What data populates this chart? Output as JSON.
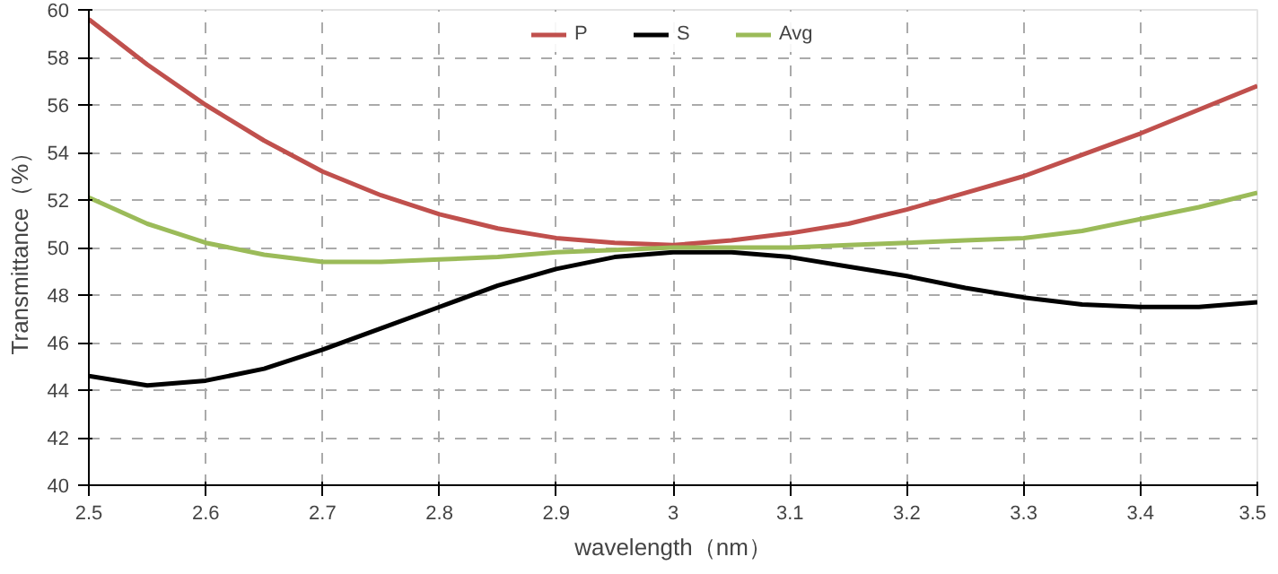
{
  "chart_data": {
    "type": "line",
    "xlabel": "wavelength（nm）",
    "ylabel": "Transmittance（%）",
    "x": [
      2.5,
      2.55,
      2.6,
      2.65,
      2.7,
      2.75,
      2.8,
      2.85,
      2.9,
      2.95,
      3.0,
      3.05,
      3.1,
      3.15,
      3.2,
      3.25,
      3.3,
      3.35,
      3.4,
      3.45,
      3.5
    ],
    "series": [
      {
        "name": "P",
        "color": "#c0504d",
        "values": [
          59.6,
          57.7,
          56.0,
          54.5,
          53.2,
          52.2,
          51.4,
          50.8,
          50.4,
          50.2,
          50.1,
          50.3,
          50.6,
          51.0,
          51.6,
          52.3,
          53.0,
          53.9,
          54.8,
          55.8,
          56.8
        ]
      },
      {
        "name": "S",
        "color": "#000000",
        "values": [
          44.6,
          44.2,
          44.4,
          44.9,
          45.7,
          46.6,
          47.5,
          48.4,
          49.1,
          49.6,
          49.8,
          49.8,
          49.6,
          49.2,
          48.8,
          48.3,
          47.9,
          47.6,
          47.5,
          47.5,
          47.7
        ]
      },
      {
        "name": "Avg",
        "color": "#9bbb59",
        "values": [
          52.1,
          51.0,
          50.2,
          49.7,
          49.4,
          49.4,
          49.5,
          49.6,
          49.8,
          49.9,
          50.0,
          50.0,
          50.0,
          50.1,
          50.2,
          50.3,
          50.4,
          50.7,
          51.2,
          51.7,
          52.3
        ]
      }
    ],
    "xlim": [
      2.5,
      3.5
    ],
    "xticks": [
      2.5,
      2.6,
      2.7,
      2.8,
      2.9,
      3,
      3.1,
      3.2,
      3.3,
      3.4,
      3.5
    ],
    "ylim": [
      40,
      60
    ],
    "yticks": [
      40,
      42,
      44,
      46,
      48,
      50,
      52,
      54,
      56,
      58,
      60
    ],
    "grid": true,
    "legend": "top",
    "marker": "none",
    "line_style": "solid"
  }
}
